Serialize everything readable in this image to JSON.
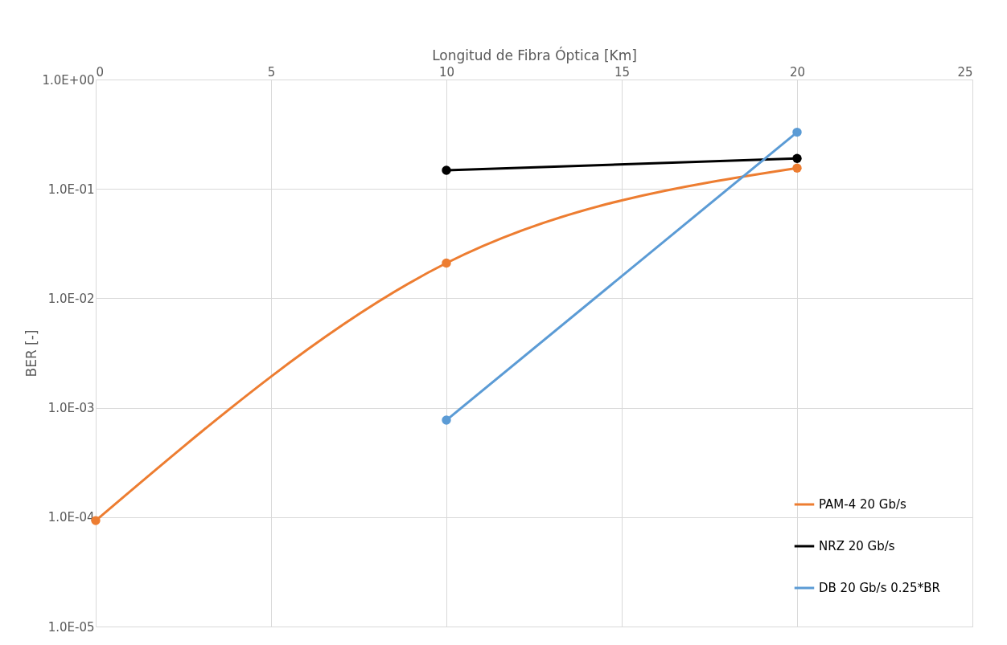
{
  "chart_data": {
    "type": "line",
    "xlabel": "Longitud de Fibra Óptica [Km]",
    "ylabel": "BER [-]",
    "log": "y",
    "grid": true,
    "legend": "bottom right",
    "marker": "circle",
    "line_style": "solid",
    "xlim": [
      0,
      25
    ],
    "xticks": [
      0,
      5,
      10,
      15,
      20,
      25
    ],
    "ylim": [
      1e-05,
      1
    ],
    "yticks": [
      {
        "value": 1,
        "label": "1.0E+00"
      },
      {
        "value": 0.1,
        "label": "1.0E-01"
      },
      {
        "value": 0.01,
        "label": "1.0E-02"
      },
      {
        "value": 0.001,
        "label": "1.0E-03"
      },
      {
        "value": 0.0001,
        "label": "1.0E-04"
      },
      {
        "value": 1e-05,
        "label": "1.0E-05"
      }
    ],
    "series": [
      {
        "name": "PAM-4 20 Gb/s",
        "color": "#ed7d31",
        "x": [
          0,
          10,
          20
        ],
        "values": [
          9.3e-05,
          0.021,
          0.155
        ]
      },
      {
        "name": "NRZ 20 Gb/s",
        "color": "#000000",
        "x": [
          10,
          20
        ],
        "values": [
          0.148,
          0.19
        ]
      },
      {
        "name": "DB 20 Gb/s 0.25*BR",
        "color": "#5b9bd5",
        "x": [
          10,
          20
        ],
        "values": [
          0.00077,
          0.33
        ]
      }
    ]
  }
}
